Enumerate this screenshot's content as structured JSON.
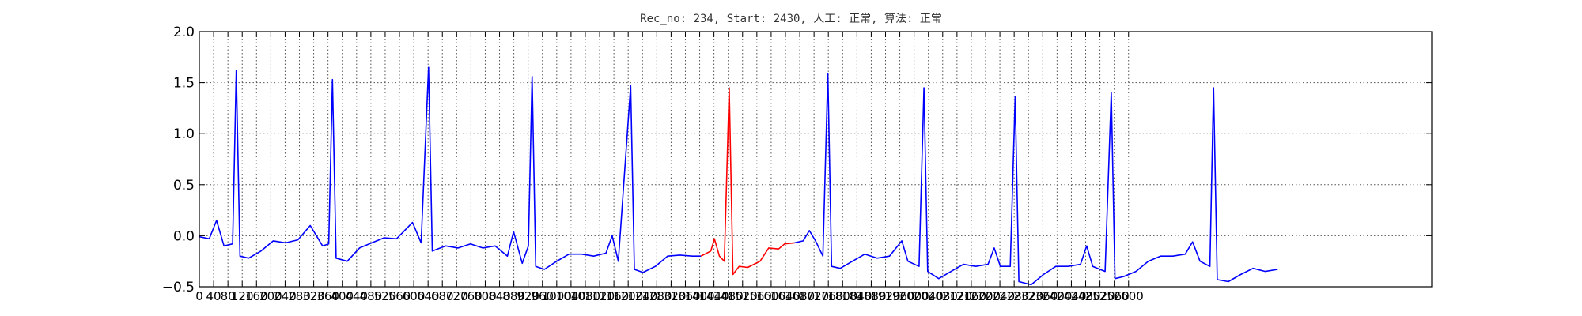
{
  "chart_data": {
    "type": "line",
    "title": "Rec_no: 234, Start: 2430, 人工: 正常, 算法: 正常",
    "xlabel": "",
    "ylabel": "",
    "xlim": [
      0,
      1000
    ],
    "ylim": [
      -0.5,
      2.0
    ],
    "grid": true,
    "yticks": [
      "2.0",
      "1.5",
      "1.0",
      "0.5",
      "0.0",
      "−0.5"
    ],
    "ytick_values": [
      2.0,
      1.5,
      1.0,
      0.5,
      0.0,
      -0.5
    ],
    "xticks": [
      "0",
      "40",
      "80",
      "120",
      "160",
      "200",
      "240",
      "280",
      "320",
      "360",
      "400",
      "440",
      "480",
      "520",
      "560",
      "600",
      "640",
      "680",
      "720",
      "760",
      "800",
      "840",
      "880",
      "920",
      "960",
      "1000",
      "1040",
      "1080",
      "1120",
      "1160",
      "1200",
      "1240",
      "1280",
      "1320",
      "1360",
      "1400",
      "1440",
      "1480",
      "1520",
      "1560",
      "1600",
      "1640",
      "1680",
      "1720",
      "1760",
      "1800",
      "1840",
      "1880",
      "1920",
      "1960",
      "2000",
      "2040",
      "2080",
      "2120",
      "2160",
      "2200",
      "2240",
      "2280",
      "2320",
      "2360",
      "2400",
      "2440",
      "2480",
      "2520",
      "2560",
      "2600"
    ],
    "xtick_values": [
      0,
      11.6,
      23.2,
      34.8,
      46.4,
      58.0,
      69.6,
      81.2,
      92.8,
      104.4,
      116.0,
      127.6,
      139.2,
      150.8,
      162.4,
      174.0,
      185.6,
      197.2,
      208.8,
      220.4,
      232.0,
      243.6,
      255.2,
      266.8,
      278.4,
      290.0,
      301.6,
      313.2,
      324.8,
      336.4,
      348.0,
      359.6,
      371.2,
      382.8,
      394.4,
      406.0,
      417.6,
      429.2,
      440.8,
      452.4,
      464.0,
      475.6,
      487.2,
      498.8,
      510.4,
      522.0,
      533.6,
      545.2,
      556.8,
      568.4,
      580.0,
      591.6,
      603.2,
      614.8,
      626.4,
      638.0,
      649.6,
      661.2,
      672.8,
      684.4,
      696.0,
      707.6,
      719.2,
      730.8,
      742.4,
      754.0
    ],
    "series": [
      {
        "color": "#0000ff",
        "values": [
          [
            0,
            -0.01
          ],
          [
            8,
            -0.03
          ],
          [
            14,
            0.15
          ],
          [
            20,
            -0.1
          ],
          [
            27,
            -0.08
          ],
          [
            30,
            1.62
          ],
          [
            33,
            -0.2
          ],
          [
            40,
            -0.22
          ],
          [
            50,
            -0.15
          ],
          [
            60,
            -0.05
          ],
          [
            70,
            -0.07
          ],
          [
            80,
            -0.04
          ],
          [
            90,
            0.1
          ],
          [
            100,
            -0.1
          ],
          [
            105,
            -0.08
          ],
          [
            108,
            1.53
          ],
          [
            111,
            -0.22
          ],
          [
            120,
            -0.25
          ],
          [
            130,
            -0.12
          ],
          [
            140,
            -0.07
          ],
          [
            150,
            -0.02
          ],
          [
            160,
            -0.03
          ],
          [
            173,
            0.13
          ],
          [
            180,
            -0.07
          ],
          [
            186,
            1.65
          ],
          [
            189,
            -0.15
          ],
          [
            200,
            -0.1
          ],
          [
            210,
            -0.12
          ],
          [
            220,
            -0.08
          ],
          [
            230,
            -0.12
          ],
          [
            240,
            -0.1
          ],
          [
            250,
            -0.2
          ],
          [
            255,
            0.04
          ],
          [
            262,
            -0.27
          ],
          [
            267,
            -0.1
          ],
          [
            270,
            1.56
          ],
          [
            273,
            -0.3
          ],
          [
            280,
            -0.33
          ],
          [
            290,
            -0.25
          ],
          [
            300,
            -0.18
          ],
          [
            310,
            -0.18
          ],
          [
            320,
            -0.2
          ],
          [
            330,
            -0.17
          ],
          [
            335,
            0.0
          ],
          [
            340,
            -0.25
          ],
          [
            350,
            1.47
          ],
          [
            353,
            -0.33
          ],
          [
            360,
            -0.36
          ],
          [
            370,
            -0.3
          ],
          [
            380,
            -0.2
          ],
          [
            390,
            -0.19
          ],
          [
            400,
            -0.2
          ],
          [
            407,
            -0.2
          ]
        ]
      },
      {
        "color": "#ff0000",
        "values": [
          [
            407,
            -0.2
          ],
          [
            415,
            -0.15
          ],
          [
            418,
            -0.03
          ],
          [
            422,
            -0.2
          ],
          [
            426,
            -0.25
          ],
          [
            430,
            1.45
          ],
          [
            433,
            -0.38
          ],
          [
            438,
            -0.3
          ],
          [
            445,
            -0.31
          ],
          [
            455,
            -0.25
          ],
          [
            462,
            -0.12
          ],
          [
            470,
            -0.13
          ],
          [
            475,
            -0.08
          ],
          [
            483,
            -0.07
          ]
        ]
      },
      {
        "color": "#0000ff",
        "values": [
          [
            483,
            -0.07
          ],
          [
            490,
            -0.05
          ],
          [
            495,
            0.05
          ],
          [
            500,
            -0.05
          ],
          [
            506,
            -0.2
          ],
          [
            510,
            1.59
          ],
          [
            513,
            -0.3
          ],
          [
            520,
            -0.32
          ],
          [
            530,
            -0.25
          ],
          [
            540,
            -0.18
          ],
          [
            550,
            -0.22
          ],
          [
            560,
            -0.2
          ],
          [
            570,
            -0.05
          ],
          [
            575,
            -0.25
          ],
          [
            584,
            -0.3
          ],
          [
            588,
            1.45
          ],
          [
            591,
            -0.35
          ],
          [
            600,
            -0.42
          ],
          [
            610,
            -0.35
          ],
          [
            620,
            -0.28
          ],
          [
            630,
            -0.3
          ],
          [
            640,
            -0.28
          ],
          [
            645,
            -0.12
          ],
          [
            650,
            -0.3
          ],
          [
            658,
            -0.3
          ],
          [
            662,
            1.36
          ],
          [
            665,
            -0.45
          ],
          [
            675,
            -0.48
          ],
          [
            685,
            -0.38
          ],
          [
            695,
            -0.3
          ],
          [
            705,
            -0.3
          ],
          [
            715,
            -0.28
          ],
          [
            720,
            -0.1
          ],
          [
            725,
            -0.3
          ],
          [
            735,
            -0.35
          ],
          [
            740,
            1.4
          ],
          [
            743,
            -0.42
          ],
          [
            750,
            -0.4
          ],
          [
            760,
            -0.35
          ],
          [
            770,
            -0.25
          ],
          [
            780,
            -0.2
          ],
          [
            790,
            -0.2
          ],
          [
            800,
            -0.18
          ],
          [
            806,
            -0.06
          ],
          [
            812,
            -0.25
          ],
          [
            820,
            -0.3
          ],
          [
            823,
            1.45
          ],
          [
            826,
            -0.43
          ],
          [
            835,
            -0.45
          ],
          [
            845,
            -0.38
          ],
          [
            855,
            -0.32
          ],
          [
            865,
            -0.35
          ],
          [
            875,
            -0.33
          ]
        ]
      }
    ]
  }
}
